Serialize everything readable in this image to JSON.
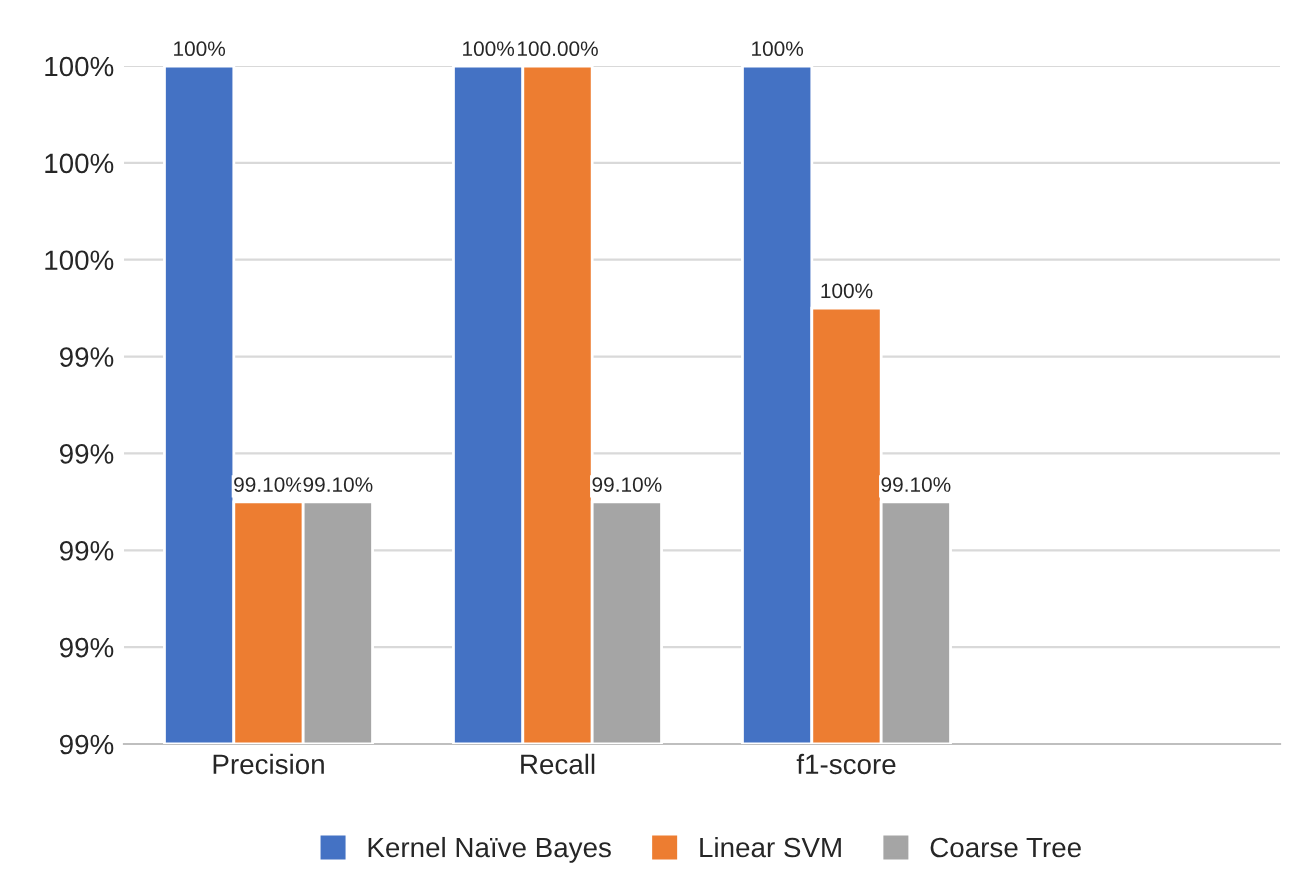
{
  "chart_data": {
    "type": "bar",
    "categories": [
      "Precision",
      "Recall",
      "f1-score",
      null
    ],
    "series": [
      {
        "name": "Kernel Naïve Bayes",
        "color": "#4472c4",
        "values": [
          100,
          100,
          100,
          null
        ],
        "value_labels": [
          "100%",
          "100%",
          "100%",
          null
        ]
      },
      {
        "name": "Linear SVM",
        "color": "#ed7d31",
        "values": [
          99.1,
          100,
          99.5,
          null
        ],
        "value_labels": [
          "99.10%",
          "100.00%",
          "100%",
          null
        ]
      },
      {
        "name": "Coarse Tree",
        "color": "#a5a5a5",
        "values": [
          99.1,
          99.1,
          99.1,
          null
        ],
        "value_labels": [
          "99.10%",
          "99.10%",
          "99.10%",
          null
        ]
      }
    ],
    "ylim": [
      98.6,
      100
    ],
    "yticks": [
      {
        "value": 98.6,
        "label": "99%"
      },
      {
        "value": 98.8,
        "label": "99%"
      },
      {
        "value": 99.0,
        "label": "99%"
      },
      {
        "value": 99.2,
        "label": "99%"
      },
      {
        "value": 99.4,
        "label": "99%"
      },
      {
        "value": 99.6,
        "label": "100%"
      },
      {
        "value": 99.8,
        "label": "100%"
      },
      {
        "value": 100,
        "label": "100%"
      }
    ],
    "grid": "y",
    "legend": "bottom"
  }
}
